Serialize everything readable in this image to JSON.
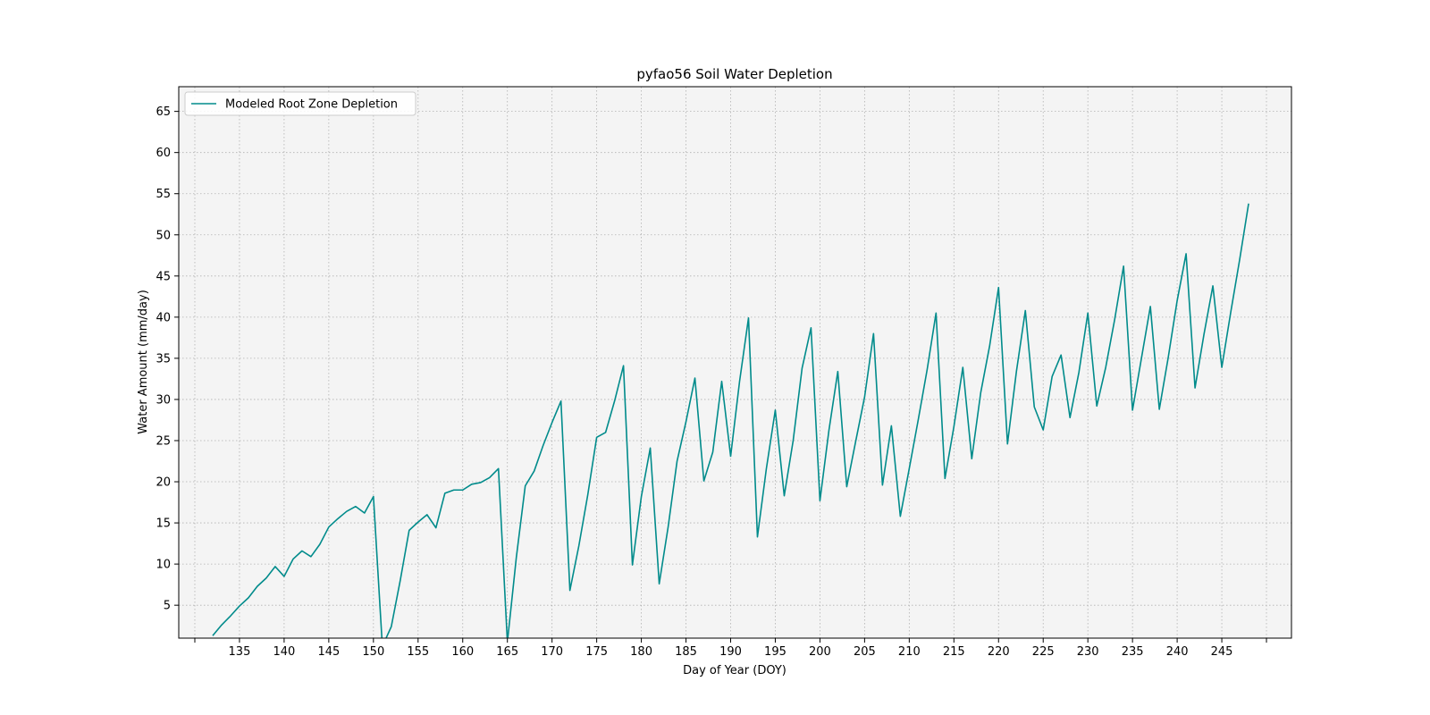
{
  "chart_data": {
    "type": "line",
    "title": "pyfao56 Soil Water Depletion",
    "xlabel": "Day of Year (DOY)",
    "ylabel": "Water Amount (mm/day)",
    "xlim": [
      128.2,
      252.8
    ],
    "ylim": [
      1,
      68
    ],
    "xticks": [
      130,
      135,
      140,
      145,
      150,
      155,
      160,
      165,
      170,
      175,
      180,
      185,
      190,
      195,
      200,
      205,
      210,
      215,
      220,
      225,
      230,
      235,
      240,
      245,
      250
    ],
    "xtick_labels": [
      "",
      "135",
      "140",
      "145",
      "150",
      "155",
      "160",
      "165",
      "170",
      "175",
      "180",
      "185",
      "190",
      "195",
      "200",
      "205",
      "210",
      "215",
      "220",
      "225",
      "230",
      "235",
      "240",
      "245",
      ""
    ],
    "yticks": [
      5,
      10,
      15,
      20,
      25,
      30,
      35,
      40,
      45,
      50,
      55,
      60,
      65
    ],
    "ytick_labels": [
      "5",
      "10",
      "15",
      "20",
      "25",
      "30",
      "35",
      "40",
      "45",
      "50",
      "55",
      "60",
      "65"
    ],
    "grid": true,
    "legend_position": "top-left",
    "series": [
      {
        "name": "Modeled Root Zone Depletion",
        "color": "#008b8b",
        "x": [
          132,
          133,
          134,
          135,
          136,
          137,
          138,
          139,
          140,
          141,
          142,
          143,
          144,
          145,
          146,
          147,
          148,
          149,
          150,
          151,
          152,
          153,
          154,
          155,
          156,
          157,
          158,
          159,
          160,
          161,
          162,
          163,
          164,
          165,
          166,
          167,
          168,
          169,
          170,
          171,
          172,
          173,
          174,
          175,
          176,
          177,
          178,
          179,
          180,
          181,
          182,
          183,
          184,
          185,
          186,
          187,
          188,
          189,
          190,
          191,
          192,
          193,
          194,
          195,
          196,
          197,
          198,
          199,
          200,
          201,
          202,
          203,
          204,
          205,
          206,
          207,
          208,
          209,
          210,
          211,
          212,
          213,
          214,
          215,
          216,
          217,
          218,
          219,
          220,
          221,
          222,
          223,
          224,
          225,
          226,
          227,
          228,
          229,
          230,
          231,
          232,
          233,
          234,
          235,
          236,
          237,
          238,
          239,
          240,
          241,
          242,
          243,
          244,
          245,
          246,
          247,
          248
        ],
        "y": [
          1.3,
          2.6,
          3.7,
          4.9,
          5.9,
          7.3,
          8.3,
          9.7,
          8.5,
          10.6,
          11.6,
          10.9,
          12.4,
          14.5,
          15.5,
          16.4,
          17.0,
          16.2,
          18.2,
          0.0,
          2.4,
          8.0,
          14.1,
          15.1,
          16.0,
          14.4,
          18.6,
          19.0,
          19.0,
          19.7,
          19.9,
          20.5,
          21.6,
          0.5,
          10.8,
          19.5,
          21.3,
          24.4,
          27.2,
          29.8,
          6.8,
          12.2,
          18.4,
          25.4,
          26.0,
          29.8,
          34.1,
          9.9,
          18.2,
          24.1,
          7.6,
          14.5,
          22.5,
          27.3,
          32.6,
          20.1,
          23.6,
          32.2,
          23.1,
          32.2,
          39.9,
          13.3,
          21.6,
          28.7,
          18.3,
          25.0,
          33.8,
          38.7,
          17.7,
          26.2,
          33.4,
          19.4,
          24.9,
          30.3,
          38.0,
          19.6,
          26.8,
          15.8,
          21.6,
          27.5,
          33.6,
          40.5,
          20.4,
          26.7,
          33.9,
          22.8,
          30.8,
          36.5,
          43.6,
          24.6,
          33.4,
          40.8,
          29.1,
          26.3,
          32.8,
          35.4,
          27.8,
          33.3,
          40.5,
          29.2,
          33.9,
          39.7,
          46.2,
          28.7,
          35.0,
          41.3,
          28.8,
          35.1,
          42.0,
          47.7,
          31.4,
          37.9,
          43.8,
          33.9,
          40.6,
          47.0,
          53.8
        ]
      }
    ]
  }
}
